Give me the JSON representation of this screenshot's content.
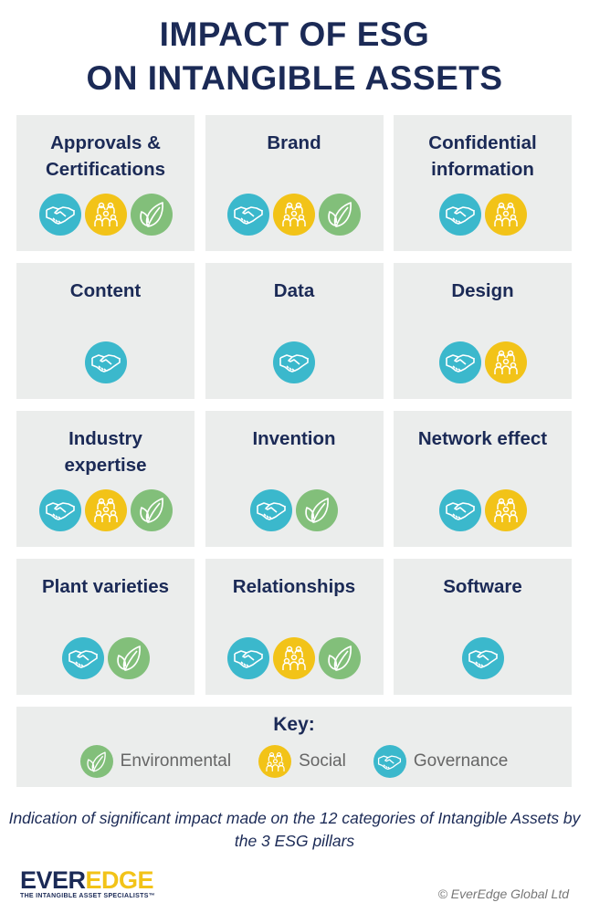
{
  "title": [
    "IMPACT OF ESG",
    "ON INTANGIBLE ASSETS"
  ],
  "colors": {
    "navy": "#1b2a56",
    "governance": "#3bb8cc",
    "social": "#f2c318",
    "environmental": "#82bf7a",
    "panel": "#ebedec"
  },
  "icons": {
    "governance": "handshake-icon",
    "social": "people-group-icon",
    "environmental": "leaf-icon"
  },
  "categories": [
    {
      "label": "Approvals & Certifications",
      "pillars": [
        "governance",
        "social",
        "environmental"
      ]
    },
    {
      "label": "Brand",
      "pillars": [
        "governance",
        "social",
        "environmental"
      ]
    },
    {
      "label": "Confidential information",
      "pillars": [
        "governance",
        "social"
      ]
    },
    {
      "label": "Content",
      "pillars": [
        "governance"
      ]
    },
    {
      "label": "Data",
      "pillars": [
        "governance"
      ]
    },
    {
      "label": "Design",
      "pillars": [
        "governance",
        "social"
      ]
    },
    {
      "label": "Industry expertise",
      "pillars": [
        "governance",
        "social",
        "environmental"
      ]
    },
    {
      "label": "Invention",
      "pillars": [
        "governance",
        "environmental"
      ]
    },
    {
      "label": "Network effect",
      "pillars": [
        "governance",
        "social"
      ]
    },
    {
      "label": "Plant varieties",
      "pillars": [
        "governance",
        "environmental"
      ]
    },
    {
      "label": "Relationships",
      "pillars": [
        "governance",
        "social",
        "environmental"
      ]
    },
    {
      "label": "Software",
      "pillars": [
        "governance"
      ]
    }
  ],
  "key": {
    "title": "Key:",
    "items": [
      {
        "pillar": "environmental",
        "label": "Environmental"
      },
      {
        "pillar": "social",
        "label": "Social"
      },
      {
        "pillar": "governance",
        "label": "Governance"
      }
    ]
  },
  "caption": "Indication of significant impact made on the 12 categories of Intangible Assets by the 3 ESG pillars",
  "logo": {
    "ever": "EVER",
    "edge": "EDGE",
    "tagline": "THE INTANGIBLE ASSET SPECIALISTS™"
  },
  "copyright": "© EverEdge Global Ltd"
}
